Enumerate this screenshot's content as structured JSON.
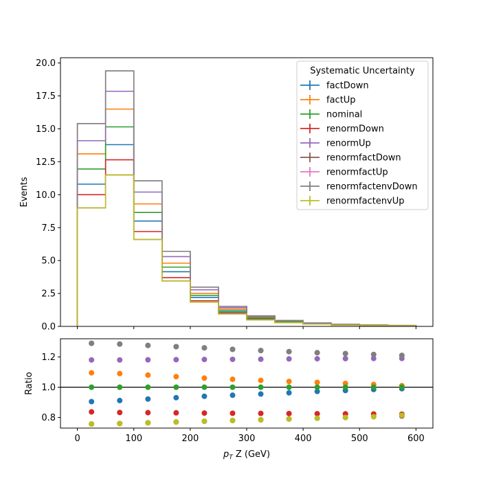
{
  "chart_data": [
    {
      "type": "histogram",
      "ylabel": "Events",
      "xlim": [
        -30,
        630
      ],
      "ylim": [
        0,
        20.4
      ],
      "yticks": [
        "0.0",
        "2.5",
        "5.0",
        "7.5",
        "10.0",
        "12.5",
        "15.0",
        "17.5",
        "20.0"
      ],
      "ytick_values": [
        0,
        2.5,
        5,
        7.5,
        10,
        12.5,
        15,
        17.5,
        20
      ],
      "bin_edges": [
        0,
        50,
        100,
        150,
        200,
        250,
        300,
        350,
        400,
        450,
        500,
        550,
        600
      ],
      "legend": {
        "title": "Systematic Uncertainty",
        "position": "top-right"
      },
      "series": [
        {
          "name": "factDown",
          "color": "#1f77b4",
          "values": [
            10.8,
            13.8,
            8.0,
            4.15,
            2.2,
            1.1,
            0.6,
            0.34,
            0.2,
            0.13,
            0.08,
            0.06
          ]
        },
        {
          "name": "factUp",
          "color": "#ff7f0e",
          "values": [
            13.1,
            16.5,
            9.3,
            4.8,
            2.5,
            1.3,
            0.68,
            0.38,
            0.22,
            0.14,
            0.09,
            0.06
          ]
        },
        {
          "name": "nominal",
          "color": "#2ca02c",
          "values": [
            11.95,
            15.15,
            8.65,
            4.5,
            2.35,
            1.2,
            0.64,
            0.36,
            0.21,
            0.13,
            0.09,
            0.06
          ]
        },
        {
          "name": "renormDown",
          "color": "#d62728",
          "values": [
            10.0,
            12.65,
            7.2,
            3.7,
            1.95,
            1.0,
            0.53,
            0.3,
            0.17,
            0.11,
            0.07,
            0.05
          ]
        },
        {
          "name": "renormUp",
          "color": "#9467bd",
          "values": [
            14.1,
            17.85,
            10.2,
            5.3,
            2.78,
            1.42,
            0.76,
            0.43,
            0.25,
            0.16,
            0.1,
            0.07
          ]
        },
        {
          "name": "renormfactDown",
          "color": "#8c564b",
          "values": [
            9.0,
            11.5,
            6.6,
            3.45,
            1.85,
            0.95,
            0.5,
            0.29,
            0.17,
            0.1,
            0.07,
            0.05
          ]
        },
        {
          "name": "renormfactUp",
          "color": "#e377c2",
          "values": [
            15.4,
            19.4,
            11.05,
            5.7,
            2.98,
            1.52,
            0.8,
            0.45,
            0.26,
            0.16,
            0.11,
            0.07
          ]
        },
        {
          "name": "renormfactenvDown",
          "color": "#7f7f7f",
          "values": [
            15.4,
            19.4,
            11.05,
            5.7,
            2.98,
            1.52,
            0.8,
            0.45,
            0.26,
            0.16,
            0.11,
            0.07
          ]
        },
        {
          "name": "renormfactenvUp",
          "color": "#bcbd22",
          "values": [
            9.0,
            11.5,
            6.6,
            3.45,
            1.85,
            0.95,
            0.5,
            0.29,
            0.17,
            0.1,
            0.07,
            0.05
          ]
        }
      ]
    },
    {
      "type": "scatter",
      "xlabel": "p_T Z (GeV)",
      "xlabel_main": "p",
      "xlabel_sub": "T",
      "xlabel_rest": " Z (GeV)",
      "ylabel": "Ratio",
      "xlim": [
        -30,
        630
      ],
      "ylim": [
        0.73,
        1.32
      ],
      "xticks": [
        "0",
        "100",
        "200",
        "300",
        "400",
        "500",
        "600"
      ],
      "xtick_values": [
        0,
        100,
        200,
        300,
        400,
        500,
        600
      ],
      "yticks": [
        "0.8",
        "1.0",
        "1.2"
      ],
      "ytick_values": [
        0.8,
        1.0,
        1.2
      ],
      "reference_line": 1.0,
      "x": [
        25,
        75,
        125,
        175,
        225,
        275,
        325,
        375,
        425,
        475,
        525,
        575
      ],
      "series": [
        {
          "name": "factDown",
          "color": "#1f77b4",
          "values": [
            0.905,
            0.912,
            0.922,
            0.931,
            0.94,
            0.947,
            0.955,
            0.963,
            0.972,
            0.978,
            0.985,
            0.99
          ]
        },
        {
          "name": "factUp",
          "color": "#ff7f0e",
          "values": [
            1.095,
            1.09,
            1.08,
            1.07,
            1.06,
            1.052,
            1.045,
            1.038,
            1.032,
            1.025,
            1.018,
            1.01
          ]
        },
        {
          "name": "nominal",
          "color": "#2ca02c",
          "values": [
            1.0,
            1.0,
            1.0,
            1.0,
            1.0,
            1.0,
            1.0,
            1.0,
            1.0,
            1.0,
            1.0,
            1.0
          ]
        },
        {
          "name": "renormDown",
          "color": "#d62728",
          "values": [
            0.837,
            0.833,
            0.832,
            0.831,
            0.829,
            0.828,
            0.827,
            0.826,
            0.825,
            0.824,
            0.823,
            0.822
          ]
        },
        {
          "name": "renormUp",
          "color": "#9467bd",
          "values": [
            1.18,
            1.18,
            1.181,
            1.182,
            1.183,
            1.184,
            1.185,
            1.187,
            1.188,
            1.189,
            1.19,
            1.19
          ]
        },
        {
          "name": "renormfactDown",
          "color": "#8c564b",
          "values": [
            0.757,
            0.76,
            0.765,
            0.77,
            0.775,
            0.78,
            0.785,
            0.79,
            0.795,
            0.8,
            0.805,
            0.81
          ]
        },
        {
          "name": "renormfactUp",
          "color": "#e377c2",
          "values": [
            1.29,
            1.285,
            1.276,
            1.268,
            1.26,
            1.25,
            1.242,
            1.235,
            1.228,
            1.222,
            1.216,
            1.21
          ]
        },
        {
          "name": "renormfactenvDown",
          "color": "#7f7f7f",
          "values": [
            1.29,
            1.285,
            1.276,
            1.268,
            1.26,
            1.25,
            1.242,
            1.235,
            1.228,
            1.222,
            1.216,
            1.21
          ]
        },
        {
          "name": "renormfactenvUp",
          "color": "#bcbd22",
          "values": [
            0.757,
            0.76,
            0.765,
            0.77,
            0.775,
            0.78,
            0.785,
            0.79,
            0.795,
            0.8,
            0.805,
            0.815
          ]
        }
      ]
    }
  ]
}
